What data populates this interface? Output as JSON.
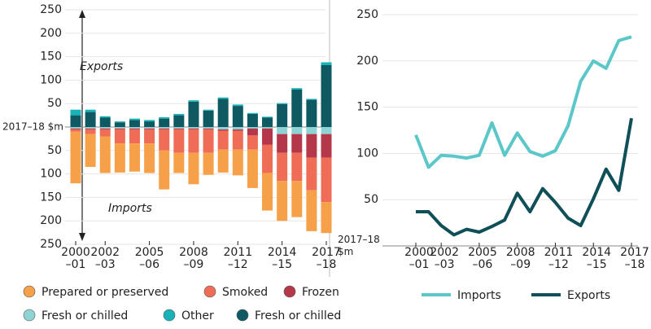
{
  "chart_data": [
    {
      "type": "bar",
      "stacked": true,
      "categories": [
        "2000–01",
        null,
        "2002–03",
        null,
        null,
        "2005–06",
        null,
        null,
        "2008–09",
        null,
        null,
        "2011–12",
        null,
        null,
        "2014–15",
        null,
        null,
        "2017–18"
      ],
      "series": [
        {
          "name": "Prepared or preserved",
          "color": "#f7a04a",
          "values": [
            -110,
            -70,
            -78,
            -62,
            -60,
            -63,
            -83,
            -43,
            -67,
            -47,
            -49,
            -55,
            -82,
            -80,
            -85,
            -77,
            -87,
            -66
          ]
        },
        {
          "name": "Smoked",
          "color": "#ef6c57",
          "values": [
            -5,
            -10,
            -15,
            -30,
            -30,
            -30,
            -45,
            -50,
            -50,
            -50,
            -40,
            -40,
            -30,
            -60,
            -60,
            -60,
            -70,
            -95
          ]
        },
        {
          "name": "Frozen",
          "color": "#b5374a",
          "values": [
            -2,
            -2,
            -2,
            -2,
            -2,
            -2,
            -2,
            -2,
            -2,
            -2,
            -3,
            -3,
            -15,
            -35,
            -40,
            -40,
            -50,
            -50
          ]
        },
        {
          "name": "Fresh or chilled",
          "color": "#8fd3d4",
          "values": [
            -3,
            -3,
            -3,
            -3,
            -3,
            -3,
            -3,
            -3,
            -3,
            -3,
            -5,
            -5,
            -3,
            -3,
            -15,
            -15,
            -15,
            -15
          ]
        },
        {
          "name": "Other",
          "color": "#18b3b8",
          "values": [
            12,
            5,
            3,
            2,
            3,
            3,
            3,
            3,
            3,
            2,
            3,
            3,
            2,
            2,
            2,
            3,
            2,
            6
          ]
        },
        {
          "name": "Fresh or chilled",
          "color": "#0e5962",
          "values": [
            25,
            32,
            20,
            10,
            15,
            12,
            18,
            25,
            54,
            35,
            60,
            45,
            28,
            20,
            49,
            80,
            58,
            132
          ]
        }
      ],
      "ylim": [
        -250,
        250
      ],
      "yticks": [
        {
          "value": -250,
          "label": "250"
        },
        {
          "value": -200,
          "label": "200"
        },
        {
          "value": -150,
          "label": "150"
        },
        {
          "value": -100,
          "label": "100"
        },
        {
          "value": -50,
          "label": "50"
        },
        {
          "value": 0,
          "label": "2017–18 $m"
        },
        50,
        100,
        150,
        200,
        250
      ],
      "annotations": [
        "Exports",
        "Imports"
      ]
    },
    {
      "type": "line",
      "categories": [
        "2000–01",
        null,
        "2002–03",
        null,
        null,
        "2005–06",
        null,
        null,
        "2008–09",
        null,
        null,
        "2011–12",
        null,
        null,
        "2014–15",
        null,
        null,
        "2017–18"
      ],
      "series": [
        {
          "name": "Imports",
          "color": "#5cc7c9",
          "values": [
            120,
            85,
            98,
            97,
            95,
            98,
            133,
            98,
            122,
            102,
            97,
            103,
            130,
            178,
            200,
            192,
            222,
            226
          ]
        },
        {
          "name": "Exports",
          "color": "#0e4f58",
          "values": [
            37,
            37,
            22,
            12,
            18,
            15,
            21,
            28,
            57,
            37,
            62,
            47,
            30,
            22,
            51,
            83,
            60,
            138
          ]
        }
      ],
      "ylim": [
        0,
        250
      ],
      "yticks": [
        {
          "value": 0,
          "label": "2017–18 $m"
        },
        50,
        100,
        150,
        200,
        250
      ]
    }
  ]
}
